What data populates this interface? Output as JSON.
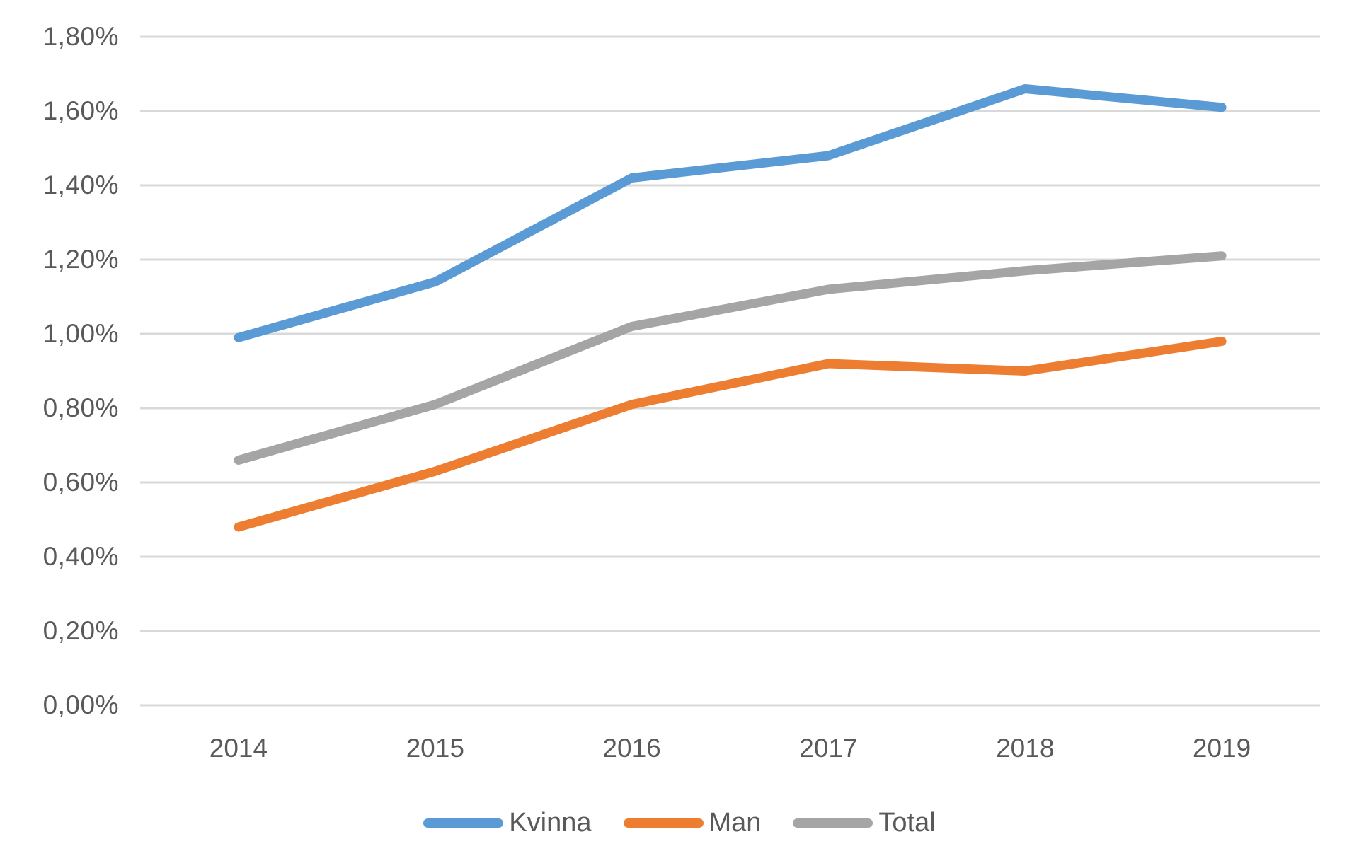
{
  "chart_data": {
    "type": "line",
    "title": "",
    "xlabel": "",
    "ylabel": "",
    "categories": [
      "2014",
      "2015",
      "2016",
      "2017",
      "2018",
      "2019"
    ],
    "series": [
      {
        "name": "Kvinna",
        "color": "#5B9BD5",
        "values": [
          0.99,
          1.14,
          1.42,
          1.48,
          1.66,
          1.61
        ]
      },
      {
        "name": "Man",
        "color": "#ED7D31",
        "values": [
          0.48,
          0.63,
          0.81,
          0.92,
          0.9,
          0.98
        ]
      },
      {
        "name": "Total",
        "color": "#A5A5A5",
        "values": [
          0.66,
          0.81,
          1.02,
          1.12,
          1.17,
          1.21
        ]
      }
    ],
    "ylim": [
      0,
      1.8
    ],
    "ytick_step": 0.2,
    "ytick_labels": [
      "1,80%",
      "1,60%",
      "1,40%",
      "1,20%",
      "1,00%",
      "0,80%",
      "0,60%",
      "0,40%",
      "0,20%",
      "0,00%"
    ],
    "number_format": "percent-comma-decimal",
    "grid": "horizontal",
    "gridline_color": "#D9D9D9",
    "axis_text_color": "#595959",
    "legend_position": "bottom",
    "background_color": "#FFFFFF"
  }
}
